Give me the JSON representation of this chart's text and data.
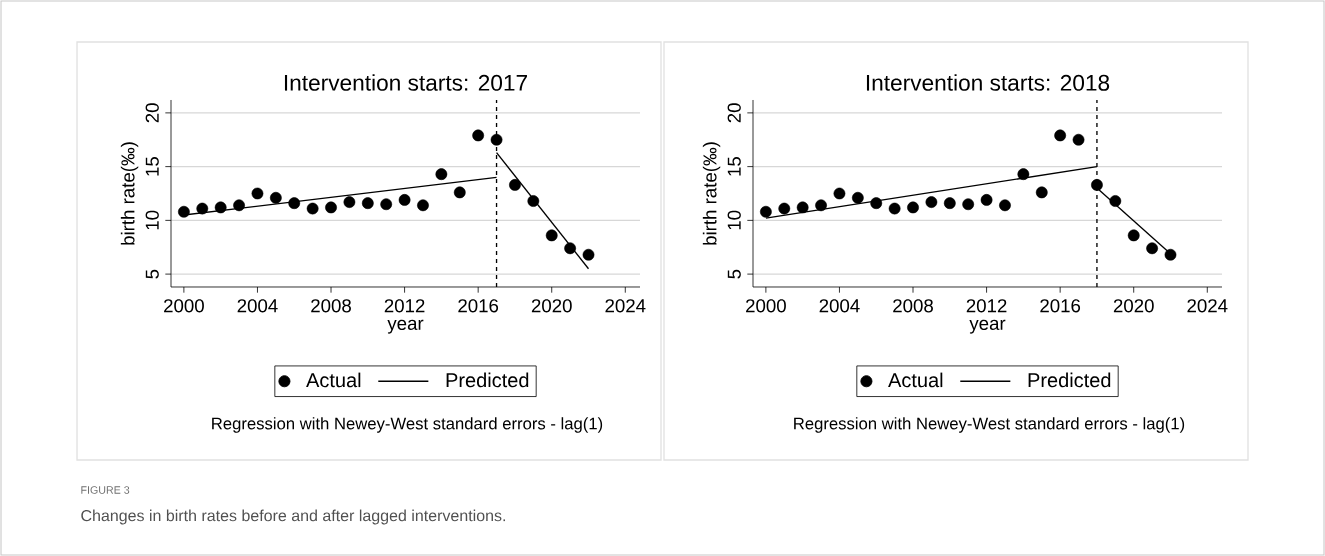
{
  "chart_data": [
    {
      "type": "scatter",
      "title": "Intervention starts: 2017",
      "xlabel": "year",
      "ylabel": "birth rate(‰)",
      "annotations": [
        "Regression with Newey-West standard errors - lag(1)",
        "FIGURE 3",
        "Changes in birth rates before and after lagged interventions."
      ],
      "series": [
        {
          "name": "Actual",
          "color": "#000000",
          "marker": "circle",
          "x": [
            2000,
            2001,
            2002,
            2003,
            2004,
            2005,
            2006,
            2007,
            2008,
            2009,
            2010,
            2011,
            2012,
            2013,
            2014,
            2015,
            2016,
            2017,
            2018,
            2019,
            2020,
            2021,
            2022
          ],
          "values": [
            10.8,
            11.1,
            11.2,
            11.4,
            12.5,
            12.1,
            11.6,
            11.1,
            11.2,
            11.7,
            11.6,
            11.5,
            11.9,
            11.4,
            14.3,
            12.6,
            17.9,
            17.5,
            13.3,
            11.8,
            8.6,
            7.4,
            6.8
          ]
        },
        {
          "name": "Predicted",
          "type": "line",
          "color": "#000000",
          "marker": "none",
          "line_style": "solid",
          "x": [
            2000,
            2017
          ],
          "values": [
            10.5,
            14.0
          ]
        },
        {
          "type": "line",
          "color": "#000000",
          "marker": "none",
          "line_style": "solid",
          "x": [
            2017,
            2022
          ],
          "values": [
            16.3,
            5.5
          ]
        }
      ],
      "ref_lines": [
        {
          "axis": "x",
          "value": 2017,
          "line_style": "dashed",
          "color": "#000000"
        }
      ],
      "xlim": [
        1999.3,
        2024.8
      ],
      "ylim": [
        3.8,
        21.2
      ],
      "xticks": [
        2000,
        2004,
        2008,
        2012,
        2016,
        2020,
        2024
      ],
      "yticks": [
        5,
        10,
        15,
        20
      ],
      "grid": "y",
      "legend": "bottom"
    },
    {
      "type": "scatter",
      "title": "Intervention starts: 2018",
      "xlabel": "year",
      "ylabel": "birth rate(‰)",
      "annotations": [
        "Regression with Newey-West standard errors - lag(1)"
      ],
      "series": [
        {
          "name": "Actual",
          "color": "#000000",
          "marker": "circle",
          "x": [
            2000,
            2001,
            2002,
            2003,
            2004,
            2005,
            2006,
            2007,
            2008,
            2009,
            2010,
            2011,
            2012,
            2013,
            2014,
            2015,
            2016,
            2017,
            2018,
            2019,
            2020,
            2021,
            2022
          ],
          "values": [
            10.8,
            11.1,
            11.2,
            11.4,
            12.5,
            12.1,
            11.6,
            11.1,
            11.2,
            11.7,
            11.6,
            11.5,
            11.9,
            11.4,
            14.3,
            12.6,
            17.9,
            17.5,
            13.3,
            11.8,
            8.6,
            7.4,
            6.8
          ]
        },
        {
          "name": "Predicted",
          "type": "line",
          "color": "#000000",
          "marker": "none",
          "line_style": "solid",
          "x": [
            2000,
            2018
          ],
          "values": [
            10.2,
            15.0
          ]
        },
        {
          "type": "line",
          "color": "#000000",
          "marker": "none",
          "line_style": "solid",
          "x": [
            2018,
            2022
          ],
          "values": [
            13.0,
            6.9
          ]
        }
      ],
      "ref_lines": [
        {
          "axis": "x",
          "value": 2018,
          "line_style": "dashed",
          "color": "#000000"
        }
      ],
      "xlim": [
        1999.3,
        2024.8
      ],
      "ylim": [
        3.8,
        21.2
      ],
      "xticks": [
        2000,
        2004,
        2008,
        2012,
        2016,
        2020,
        2024
      ],
      "yticks": [
        5,
        10,
        15,
        20
      ],
      "grid": "y",
      "legend": "bottom"
    }
  ]
}
